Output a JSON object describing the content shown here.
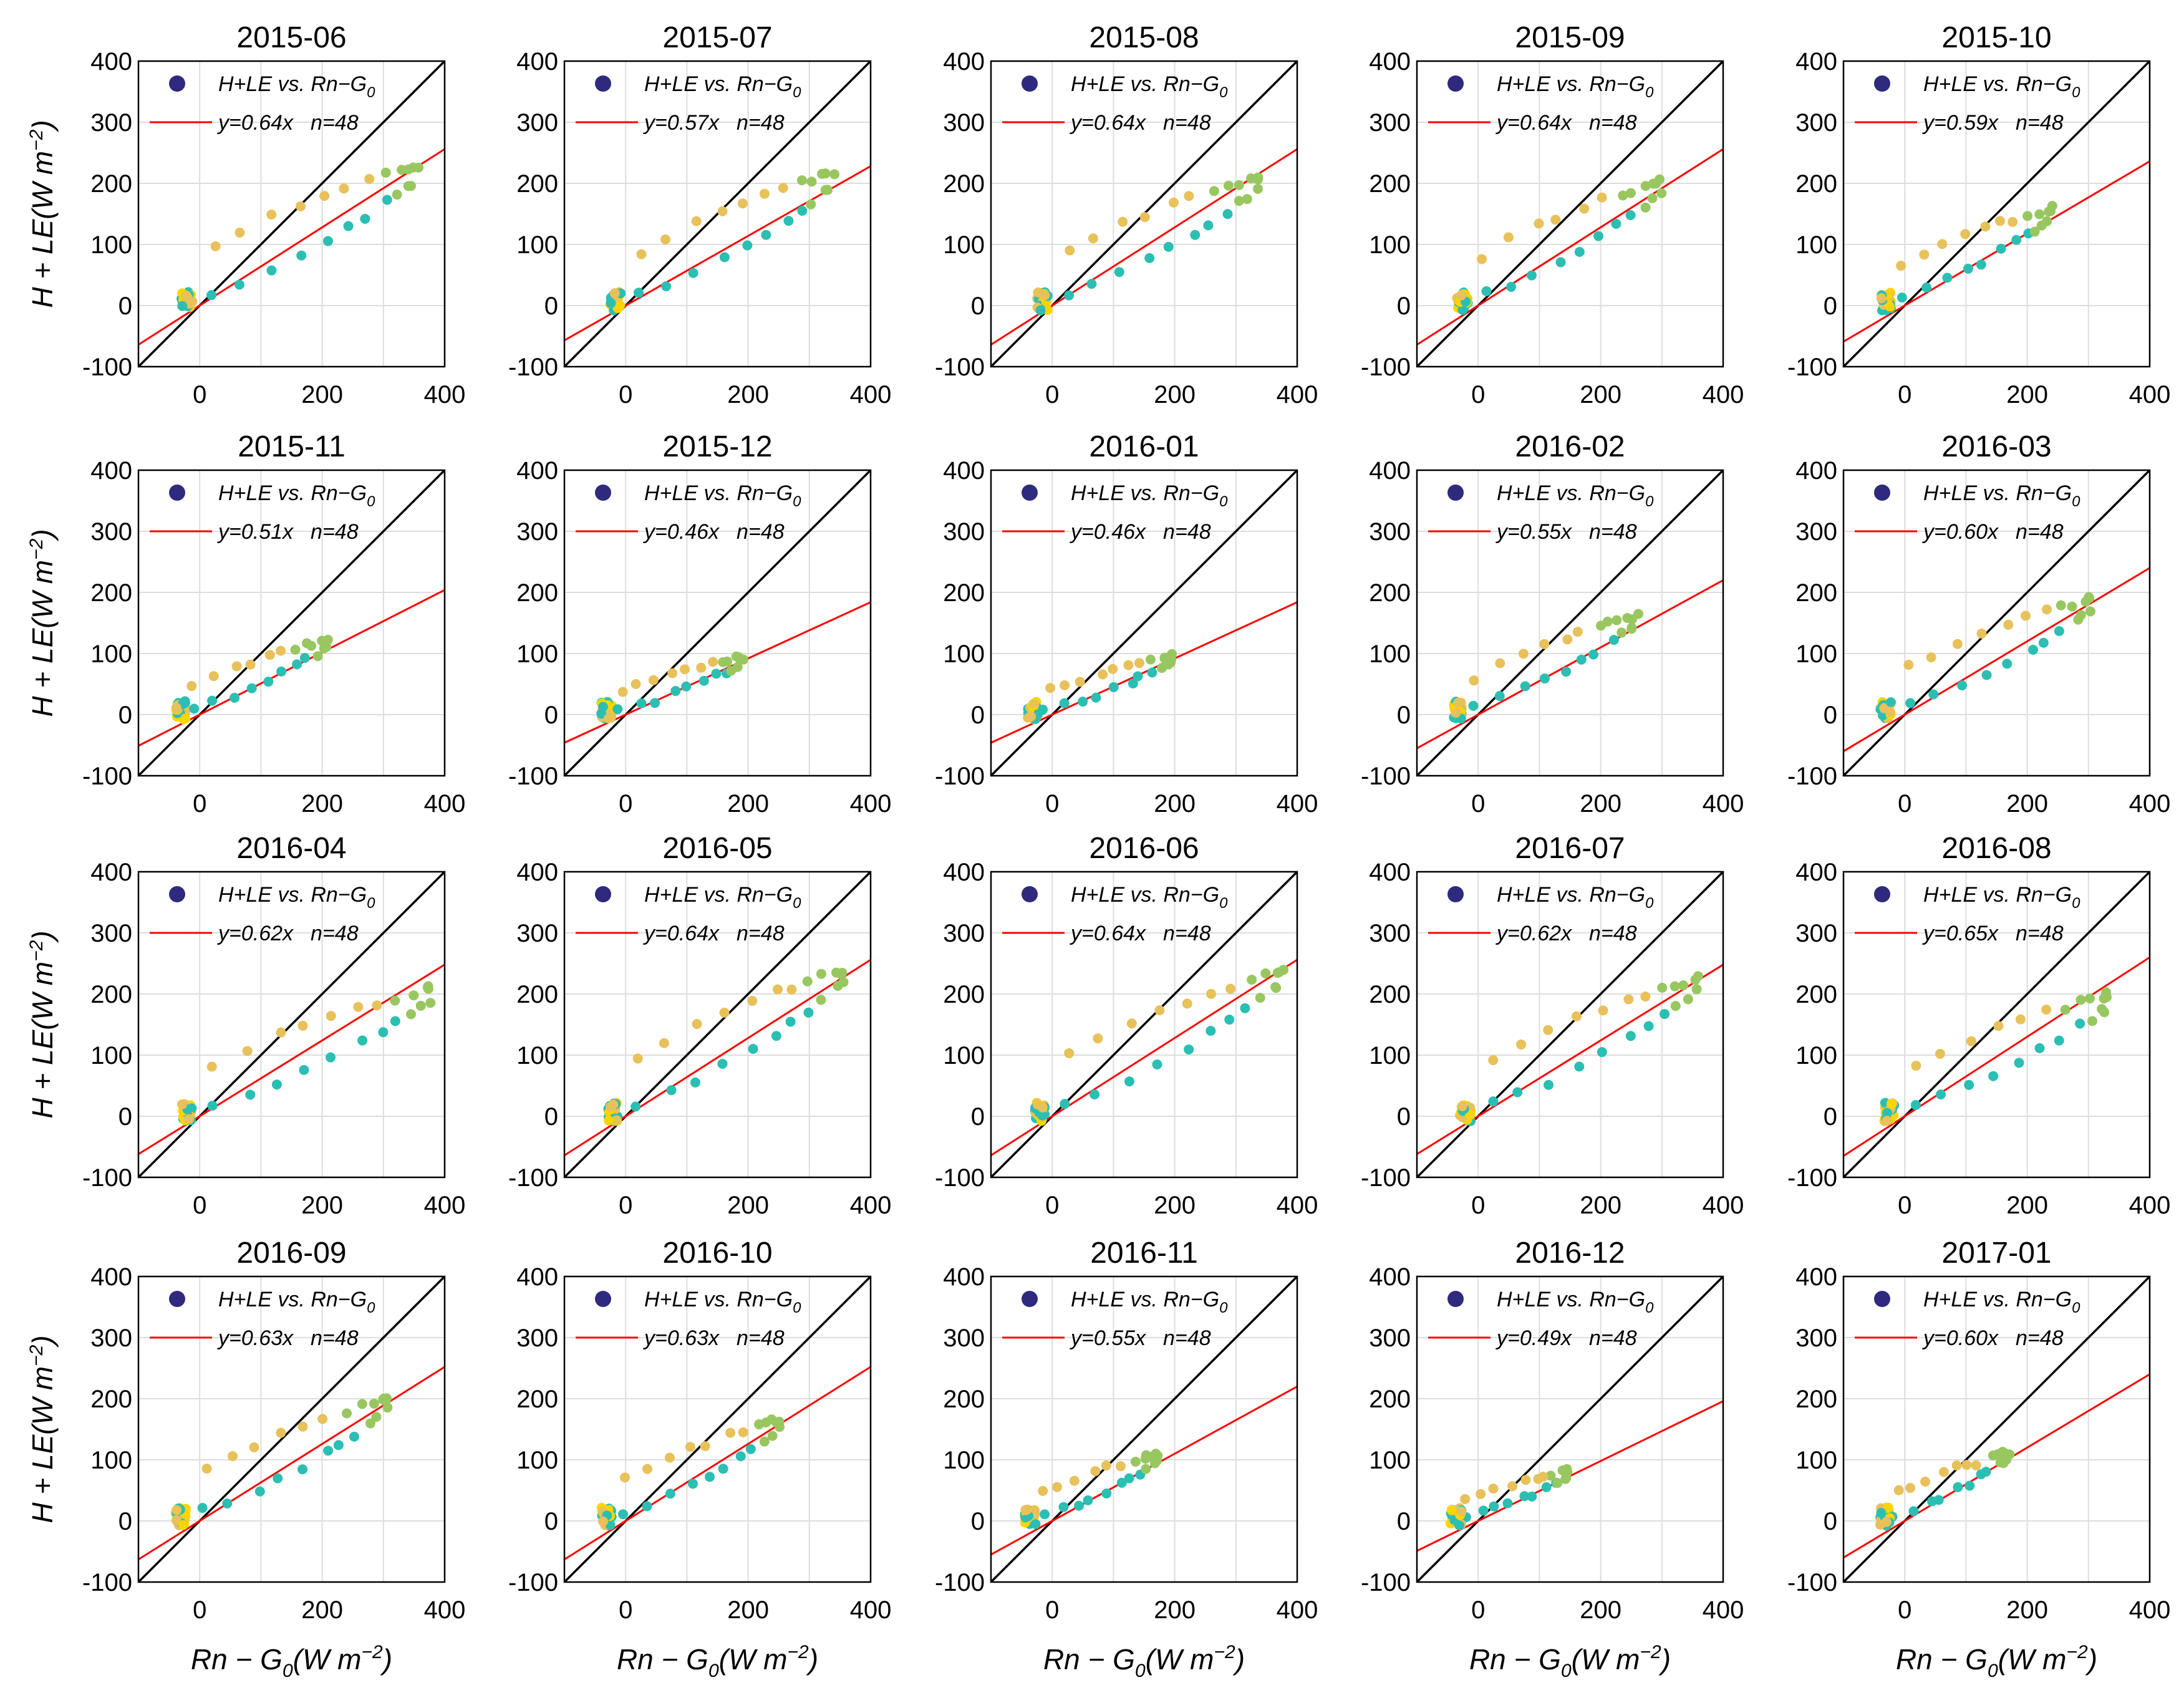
{
  "chart_data": {
    "type": "scatter",
    "rows": 4,
    "cols": 5,
    "xlim": [
      -100,
      400
    ],
    "ylim": [
      -100,
      400
    ],
    "xticks": [
      0,
      200,
      400
    ],
    "yticks": [
      -100,
      0,
      100,
      200,
      300,
      400
    ],
    "grid": true,
    "xlabel": {
      "base": "Rn − G",
      "sub": "0",
      "unit": "(W m",
      "sup": "−2",
      "close": ")"
    },
    "ylabel": {
      "text": "H + LE(W m",
      "sup": "−2",
      "close": ")"
    },
    "legend": {
      "position": "top-left",
      "series_base": "H+LE",
      "vs": "vs.",
      "series_rhs": "Rn−G",
      "rhs_sub": "0",
      "fit_prefix": "y=",
      "fit_suffix": "x",
      "n_label": "n=48"
    },
    "colors": {
      "one_to_one": "#000000",
      "fit": "#ff0000",
      "legend_marker": "#2e2a7d",
      "grid": "#dddddd",
      "morning": "#2bbfb3",
      "afternoon": "#e8c15a",
      "midday": "#98c760",
      "night": "#ffd400"
    },
    "panels": [
      {
        "title": "2015-06",
        "slope": 0.64,
        "n": 48,
        "xmin": -30,
        "xmax": 355,
        "ymax": 230,
        "hi": 0.44
      },
      {
        "title": "2015-07",
        "slope": 0.57,
        "n": 48,
        "xmin": -25,
        "xmax": 335,
        "ymax": 215,
        "hi": 0.44
      },
      {
        "title": "2015-08",
        "slope": 0.64,
        "n": 48,
        "xmin": -25,
        "xmax": 335,
        "ymax": 210,
        "hi": 0.44
      },
      {
        "title": "2015-09",
        "slope": 0.64,
        "n": 48,
        "xmin": -35,
        "xmax": 300,
        "ymax": 205,
        "hi": 0.46
      },
      {
        "title": "2015-10",
        "slope": 0.59,
        "n": 48,
        "xmin": -40,
        "xmax": 240,
        "ymax": 160,
        "hi": 0.48
      },
      {
        "title": "2015-11",
        "slope": 0.51,
        "n": 48,
        "xmin": -40,
        "xmax": 205,
        "ymax": 120,
        "hi": 0.5
      },
      {
        "title": "2015-12",
        "slope": 0.46,
        "n": 48,
        "xmin": -40,
        "xmax": 190,
        "ymax": 95,
        "hi": 0.5
      },
      {
        "title": "2016-01",
        "slope": 0.46,
        "n": 48,
        "xmin": -40,
        "xmax": 195,
        "ymax": 95,
        "hi": 0.5
      },
      {
        "title": "2016-02",
        "slope": 0.55,
        "n": 48,
        "xmin": -40,
        "xmax": 255,
        "ymax": 160,
        "hi": 0.47
      },
      {
        "title": "2016-03",
        "slope": 0.6,
        "n": 48,
        "xmin": -40,
        "xmax": 305,
        "ymax": 190,
        "hi": 0.46
      },
      {
        "title": "2016-04",
        "slope": 0.62,
        "n": 48,
        "xmin": -30,
        "xmax": 380,
        "ymax": 210,
        "hi": 0.42
      },
      {
        "title": "2016-05",
        "slope": 0.64,
        "n": 48,
        "xmin": -30,
        "xmax": 355,
        "ymax": 240,
        "hi": 0.44
      },
      {
        "title": "2016-06",
        "slope": 0.64,
        "n": 48,
        "xmin": -30,
        "xmax": 375,
        "ymax": 240,
        "hi": 0.44
      },
      {
        "title": "2016-07",
        "slope": 0.62,
        "n": 48,
        "xmin": -30,
        "xmax": 355,
        "ymax": 225,
        "hi": 0.44
      },
      {
        "title": "2016-08",
        "slope": 0.65,
        "n": 48,
        "xmin": -35,
        "xmax": 335,
        "ymax": 200,
        "hi": 0.45
      },
      {
        "title": "2016-09",
        "slope": 0.63,
        "n": 48,
        "xmin": -40,
        "xmax": 305,
        "ymax": 200,
        "hi": 0.46
      },
      {
        "title": "2016-10",
        "slope": 0.63,
        "n": 48,
        "xmin": -40,
        "xmax": 250,
        "ymax": 165,
        "hi": 0.48
      },
      {
        "title": "2016-11",
        "slope": 0.55,
        "n": 48,
        "xmin": -45,
        "xmax": 175,
        "ymax": 110,
        "hi": 0.5
      },
      {
        "title": "2016-12",
        "slope": 0.49,
        "n": 48,
        "xmin": -45,
        "xmax": 150,
        "ymax": 85,
        "hi": 0.52
      },
      {
        "title": "2017-01",
        "slope": 0.6,
        "n": 48,
        "xmin": -40,
        "xmax": 165,
        "ymax": 110,
        "hi": 0.5
      }
    ]
  }
}
